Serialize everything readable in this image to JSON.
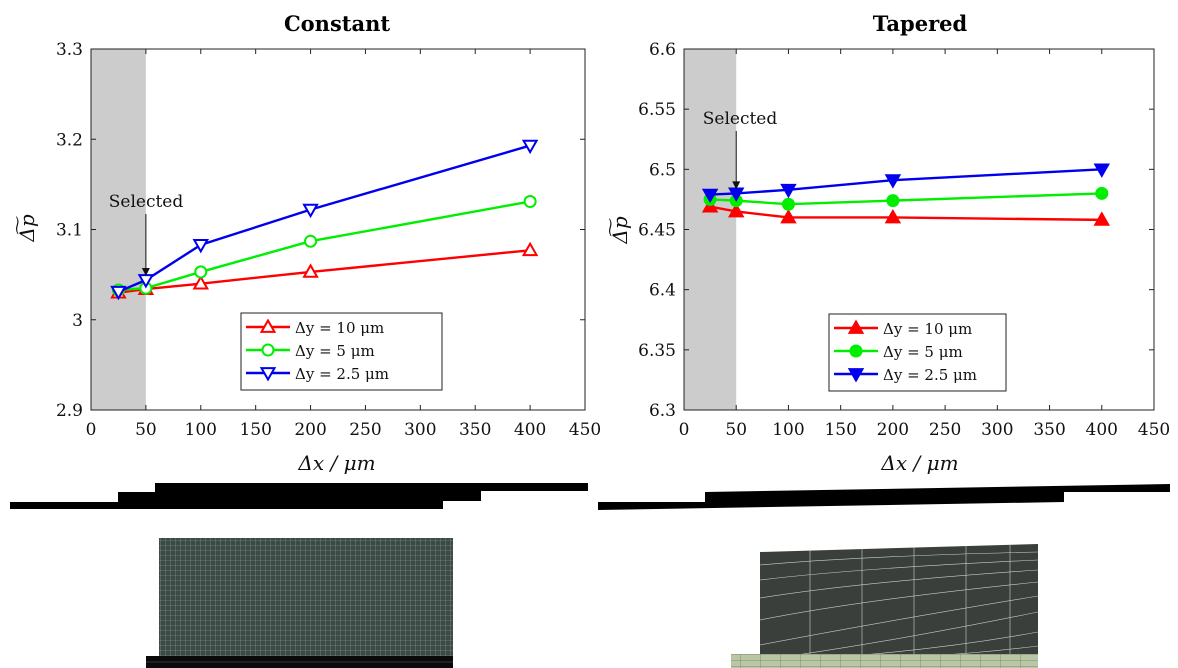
{
  "chart_data": [
    {
      "type": "line",
      "title": "Constant",
      "xlabel": "Δx / μm",
      "ylabel": "Δ͠p",
      "xlim": [
        0,
        450
      ],
      "ylim": [
        2.9,
        3.3
      ],
      "xticks": [
        "0",
        "50",
        "100",
        "150",
        "200",
        "250",
        "300",
        "350",
        "400",
        "450"
      ],
      "yticks": [
        "2.9",
        "3",
        "3.1",
        "3.2",
        "3.3"
      ],
      "grid": false,
      "legend_position": "lower-right",
      "shaded_region_x": [
        0,
        50
      ],
      "annotation": "Selected",
      "annotation_x": 50,
      "marker_fill": "open",
      "series": [
        {
          "name": "Δy = 10 μm",
          "color": "#ff0000",
          "marker": "triangle-up",
          "x": [
            25,
            50,
            100,
            200,
            400
          ],
          "y": [
            3.03,
            3.034,
            3.04,
            3.053,
            3.077
          ]
        },
        {
          "name": "Δy = 5 μm",
          "color": "#00ee00",
          "marker": "circle",
          "x": [
            25,
            50,
            100,
            200,
            400
          ],
          "y": [
            3.033,
            3.035,
            3.053,
            3.087,
            3.131
          ]
        },
        {
          "name": "Δy = 2.5 μm",
          "color": "#0000ee",
          "marker": "triangle-down",
          "x": [
            25,
            50,
            100,
            200,
            400
          ],
          "y": [
            3.031,
            3.044,
            3.083,
            3.122,
            3.193
          ]
        }
      ]
    },
    {
      "type": "line",
      "title": "Tapered",
      "xlabel": "Δx / μm",
      "ylabel": "Δ͠p",
      "xlim": [
        0,
        450
      ],
      "ylim": [
        6.3,
        6.6
      ],
      "xticks": [
        "0",
        "50",
        "100",
        "150",
        "200",
        "250",
        "300",
        "350",
        "400",
        "450"
      ],
      "yticks": [
        "6.3",
        "6.35",
        "6.4",
        "6.45",
        "6.5",
        "6.55",
        "6.6"
      ],
      "grid": false,
      "legend_position": "lower-right",
      "shaded_region_x": [
        0,
        50
      ],
      "annotation": "Selected",
      "annotation_x": 50,
      "marker_fill": "filled",
      "series": [
        {
          "name": "Δy = 10 μm",
          "color": "#ff0000",
          "marker": "triangle-up",
          "x": [
            25,
            50,
            100,
            200,
            400
          ],
          "y": [
            6.469,
            6.465,
            6.46,
            6.46,
            6.458
          ]
        },
        {
          "name": "Δy = 5 μm",
          "color": "#00ee00",
          "marker": "circle",
          "x": [
            25,
            50,
            100,
            200,
            400
          ],
          "y": [
            6.475,
            6.474,
            6.471,
            6.474,
            6.48
          ]
        },
        {
          "name": "Δy = 2.5 μm",
          "color": "#0000ee",
          "marker": "triangle-down",
          "x": [
            25,
            50,
            100,
            200,
            400
          ],
          "y": [
            6.479,
            6.48,
            6.483,
            6.491,
            6.5
          ]
        }
      ]
    }
  ],
  "colors": {
    "shade": "#cccccc",
    "geometry": "#000000",
    "mesh_constant": "#3c4a45",
    "mesh_tapered": "#3a3f3b",
    "mesh_lower_tapered": "#b9c7a6"
  }
}
